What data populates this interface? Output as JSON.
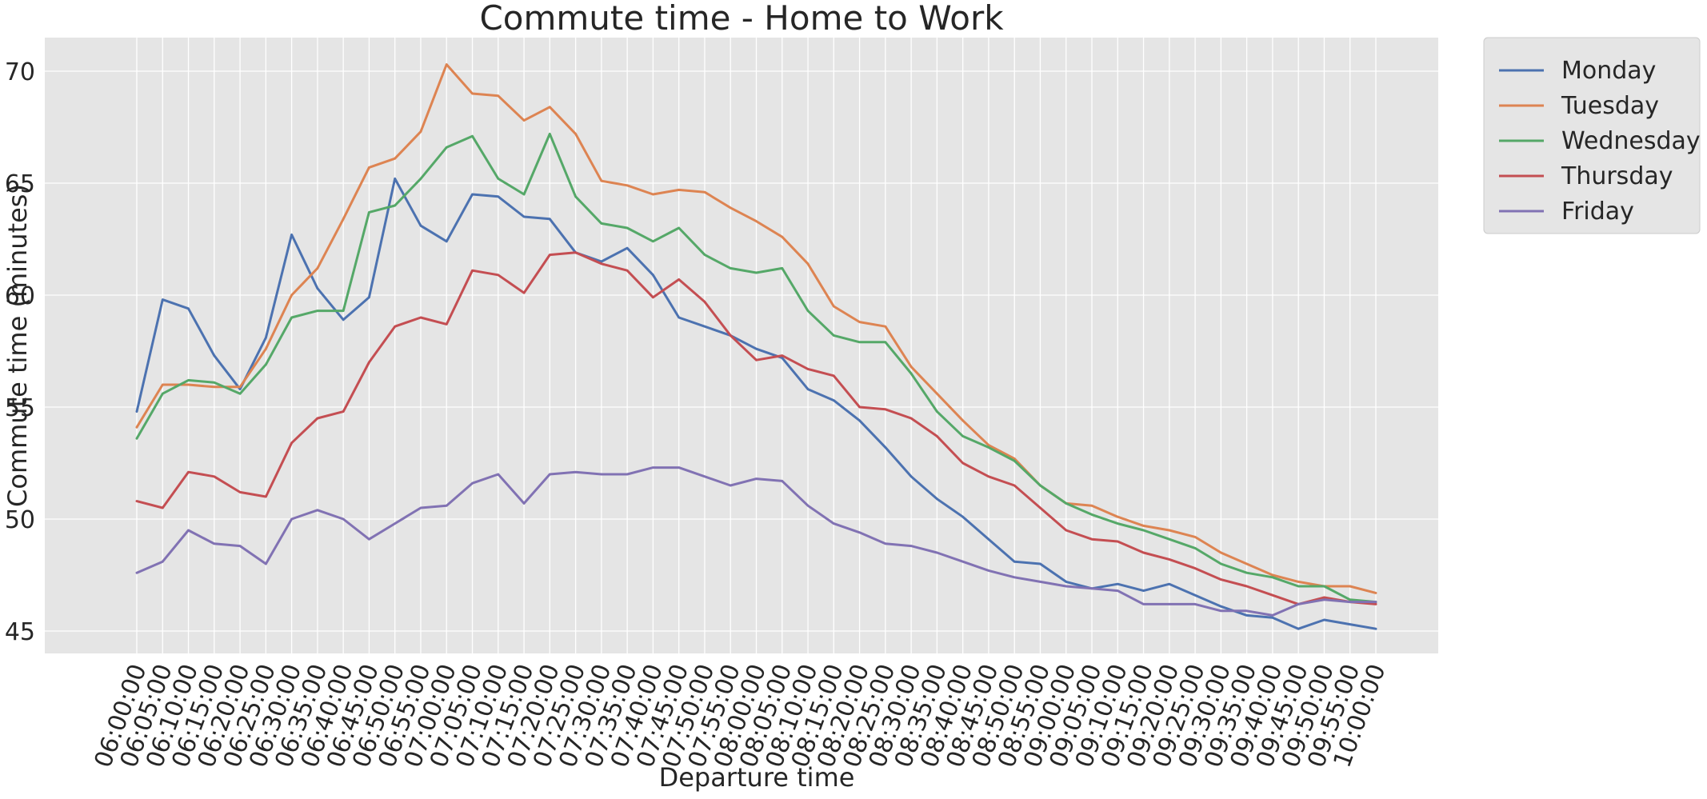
{
  "chart_data": {
    "type": "line",
    "title": "Commute time - Home to Work",
    "xlabel": "Departure time",
    "ylabel": "Commute time (minutes)",
    "ylim": [
      44,
      71.5
    ],
    "yticks": [
      45,
      50,
      55,
      60,
      65,
      70
    ],
    "grid": true,
    "legend_position": "outside-top-right",
    "x": [
      "06:00:00",
      "06:05:00",
      "06:10:00",
      "06:15:00",
      "06:20:00",
      "06:25:00",
      "06:30:00",
      "06:35:00",
      "06:40:00",
      "06:45:00",
      "06:50:00",
      "06:55:00",
      "07:00:00",
      "07:05:00",
      "07:10:00",
      "07:15:00",
      "07:20:00",
      "07:25:00",
      "07:30:00",
      "07:35:00",
      "07:40:00",
      "07:45:00",
      "07:50:00",
      "07:55:00",
      "08:00:00",
      "08:05:00",
      "08:10:00",
      "08:15:00",
      "08:20:00",
      "08:25:00",
      "08:30:00",
      "08:35:00",
      "08:40:00",
      "08:45:00",
      "08:50:00",
      "08:55:00",
      "09:00:00",
      "09:05:00",
      "09:10:00",
      "09:15:00",
      "09:20:00",
      "09:25:00",
      "09:30:00",
      "09:35:00",
      "09:40:00",
      "09:45:00",
      "09:50:00",
      "09:55:00",
      "10:00:00"
    ],
    "series": [
      {
        "name": "Monday",
        "color": "#4c72b0",
        "values": [
          54.8,
          59.8,
          59.4,
          57.3,
          55.8,
          58.1,
          62.7,
          60.3,
          58.9,
          59.9,
          65.2,
          63.1,
          62.4,
          64.5,
          64.4,
          63.5,
          63.4,
          61.9,
          61.5,
          62.1,
          60.9,
          59.0,
          58.6,
          58.2,
          57.6,
          57.2,
          55.8,
          55.3,
          54.4,
          53.2,
          51.9,
          50.9,
          50.1,
          49.1,
          48.1,
          48.0,
          47.2,
          46.9,
          47.1,
          46.8,
          47.1,
          46.6,
          46.1,
          45.7,
          45.6,
          45.1,
          45.5,
          45.3,
          45.1
        ]
      },
      {
        "name": "Tuesday",
        "color": "#dd8452",
        "values": [
          54.1,
          56.0,
          56.0,
          55.9,
          55.9,
          57.6,
          60.0,
          61.2,
          63.4,
          65.7,
          66.1,
          67.3,
          70.3,
          69.0,
          68.9,
          67.8,
          68.4,
          67.2,
          65.1,
          64.9,
          64.5,
          64.7,
          64.6,
          63.9,
          63.3,
          62.6,
          61.4,
          59.5,
          58.8,
          58.6,
          56.8,
          55.6,
          54.4,
          53.3,
          52.7,
          51.5,
          50.7,
          50.6,
          50.1,
          49.7,
          49.5,
          49.2,
          48.5,
          48.0,
          47.5,
          47.2,
          47.0,
          47.0,
          46.7
        ]
      },
      {
        "name": "Wednesday",
        "color": "#55a868",
        "values": [
          53.6,
          55.6,
          56.2,
          56.1,
          55.6,
          56.9,
          59.0,
          59.3,
          59.3,
          63.7,
          64.0,
          65.2,
          66.6,
          67.1,
          65.2,
          64.5,
          67.2,
          64.4,
          63.2,
          63.0,
          62.4,
          63.0,
          61.8,
          61.2,
          61.0,
          61.2,
          59.3,
          58.2,
          57.9,
          57.9,
          56.5,
          54.8,
          53.7,
          53.2,
          52.6,
          51.5,
          50.7,
          50.2,
          49.8,
          49.5,
          49.1,
          48.7,
          48.0,
          47.6,
          47.4,
          47.0,
          47.0,
          46.4,
          46.3
        ]
      },
      {
        "name": "Thursday",
        "color": "#c44e52",
        "values": [
          50.8,
          50.5,
          52.1,
          51.9,
          51.2,
          51.0,
          53.4,
          54.5,
          54.8,
          57.0,
          58.6,
          59.0,
          58.7,
          61.1,
          60.9,
          60.1,
          61.8,
          61.9,
          61.4,
          61.1,
          59.9,
          60.7,
          59.7,
          58.2,
          57.1,
          57.3,
          56.7,
          56.4,
          55.0,
          54.9,
          54.5,
          53.7,
          52.5,
          51.9,
          51.5,
          50.5,
          49.5,
          49.1,
          49.0,
          48.5,
          48.2,
          47.8,
          47.3,
          47.0,
          46.6,
          46.2,
          46.5,
          46.3,
          46.2
        ]
      },
      {
        "name": "Friday",
        "color": "#8172b3",
        "values": [
          47.6,
          48.1,
          49.5,
          48.9,
          48.8,
          48.0,
          50.0,
          50.4,
          50.0,
          49.1,
          49.8,
          50.5,
          50.6,
          51.6,
          52.0,
          50.7,
          52.0,
          52.1,
          52.0,
          52.0,
          52.3,
          52.3,
          51.9,
          51.5,
          51.8,
          51.7,
          50.6,
          49.8,
          49.4,
          48.9,
          48.8,
          48.5,
          48.1,
          47.7,
          47.4,
          47.2,
          47.0,
          46.9,
          46.8,
          46.2,
          46.2,
          46.2,
          45.9,
          45.9,
          45.7,
          46.2,
          46.4,
          46.3,
          46.3
        ]
      }
    ]
  }
}
